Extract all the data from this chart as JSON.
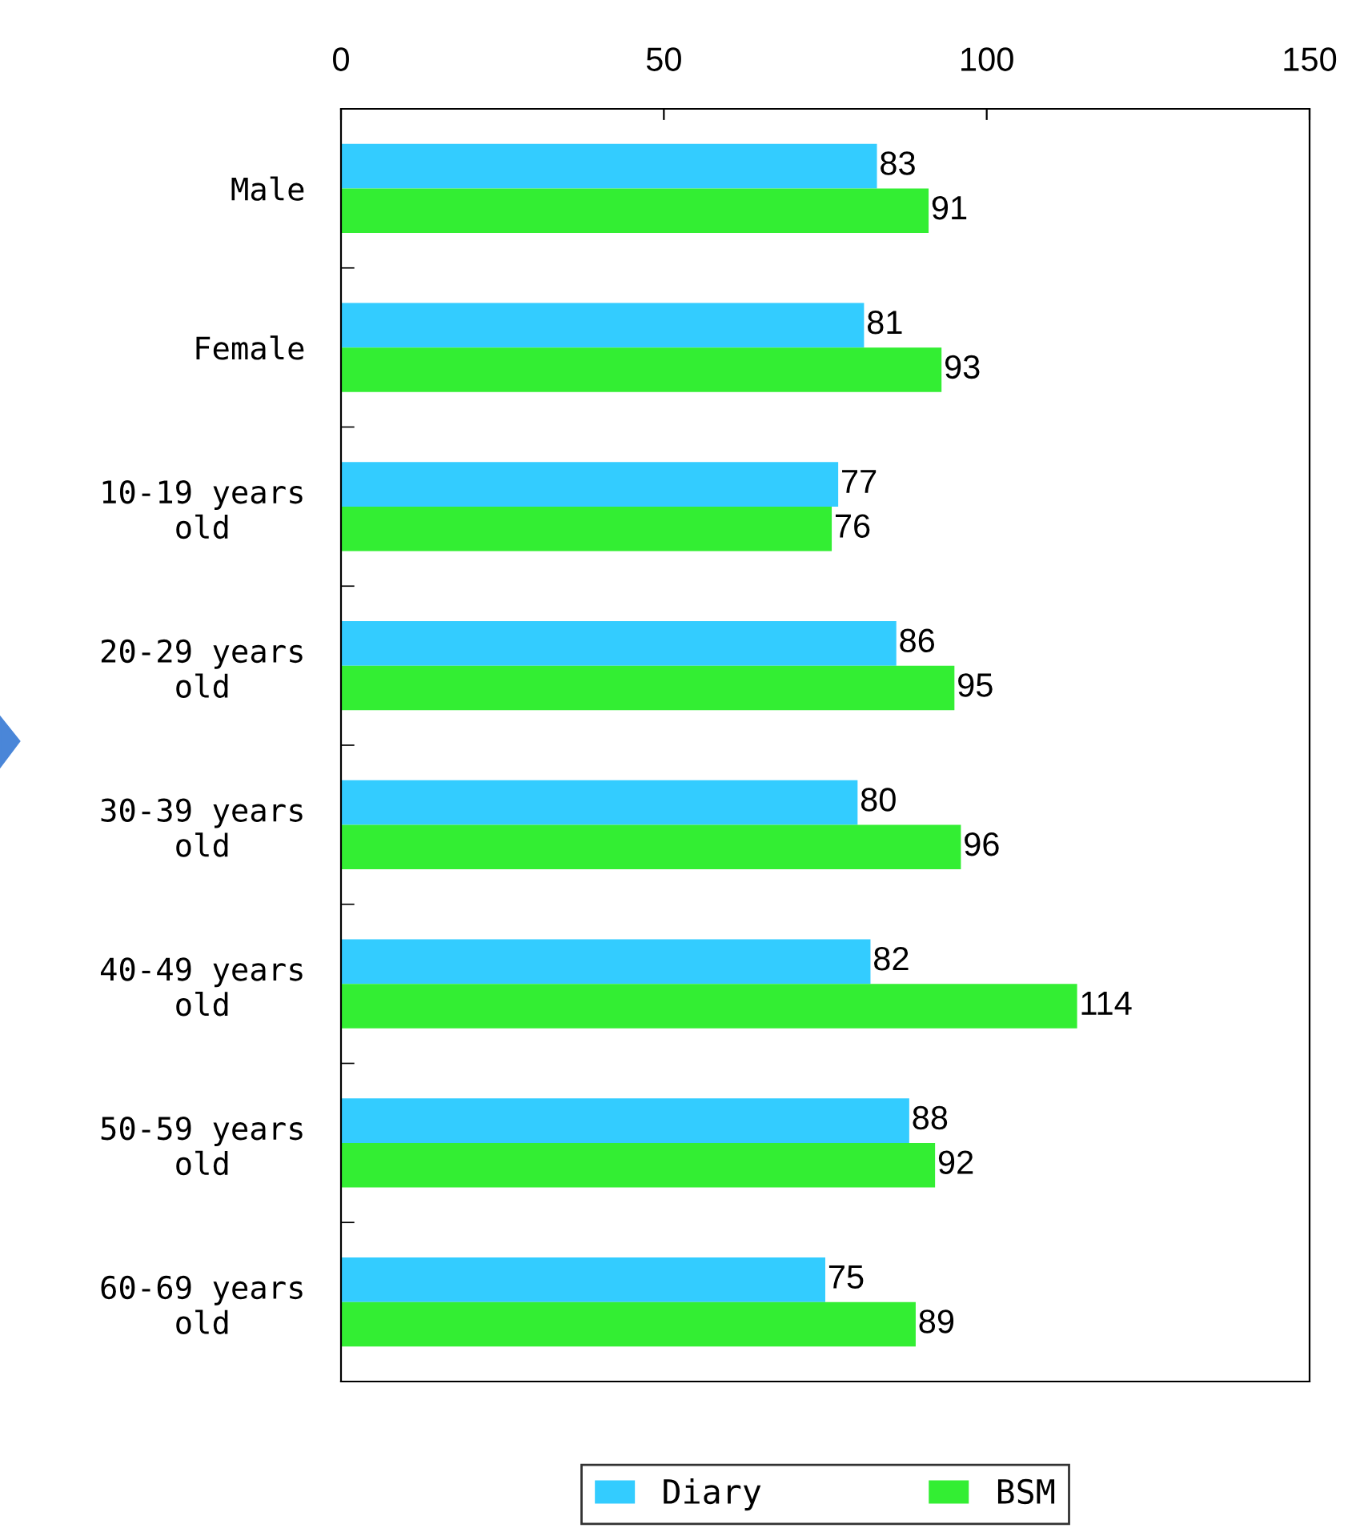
{
  "chart_data": {
    "type": "bar",
    "orientation": "horizontal",
    "categories": [
      "Male",
      "Female",
      "10-19 years\nold",
      "20-29 years\nold",
      "30-39 years\nold",
      "40-49 years\nold",
      "50-59 years\nold",
      "60-69 years\nold"
    ],
    "series": [
      {
        "name": "Diary",
        "color": "#33ccff",
        "values": [
          83,
          81,
          77,
          86,
          80,
          82,
          88,
          75
        ]
      },
      {
        "name": "BSM",
        "color": "#33ee33",
        "values": [
          91,
          93,
          76,
          95,
          96,
          114,
          92,
          89
        ]
      }
    ],
    "xlim": [
      0,
      150
    ],
    "xticks": [
      0,
      50,
      100,
      150
    ],
    "data_labels": true,
    "grid": false,
    "legend": "bottom"
  }
}
